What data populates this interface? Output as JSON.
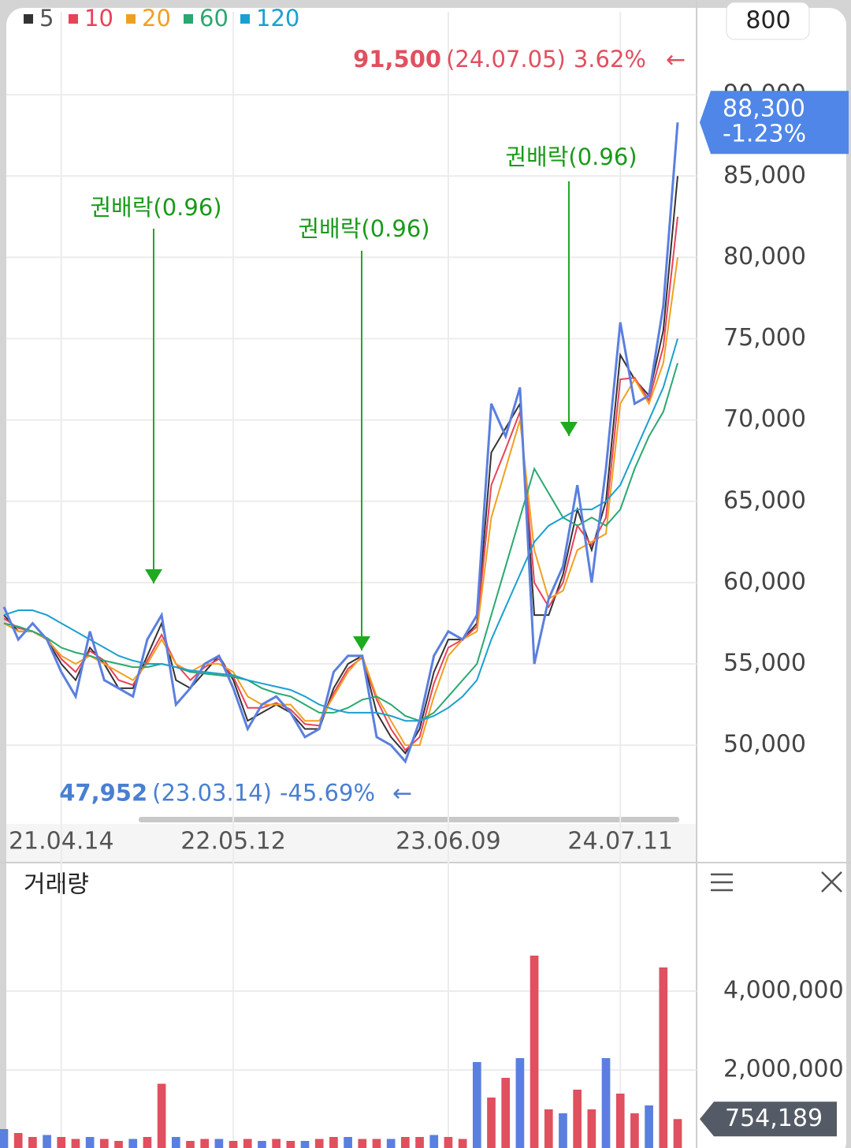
{
  "toolbar_value": "800",
  "chart_data": [
    {
      "type": "line",
      "categories": [
        null,
        null,
        null,
        null,
        "21.04.14",
        null,
        null,
        null,
        null,
        null,
        null,
        null,
        null,
        null,
        null,
        null,
        "22.05.12",
        null,
        null,
        null,
        null,
        null,
        null,
        null,
        null,
        null,
        null,
        null,
        null,
        null,
        null,
        "23.06.09",
        null,
        null,
        null,
        null,
        null,
        null,
        null,
        null,
        null,
        null,
        null,
        "24.07.11",
        null,
        null,
        null,
        null
      ],
      "values": [
        58500,
        56500,
        57500,
        56500,
        54500,
        53000,
        57000,
        54000,
        53500,
        53000,
        56500,
        58000,
        52500,
        53500,
        55000,
        55500,
        53500,
        51000,
        52500,
        53000,
        52000,
        50500,
        51000,
        54500,
        55500,
        55500,
        50500,
        50000,
        49000,
        51500,
        55500,
        57000,
        56500,
        58000,
        71000,
        69000,
        72000,
        55000,
        59000,
        61000,
        66000,
        60000,
        67000,
        76000,
        71000,
        71500,
        77000,
        88300
      ],
      "color": "#5b7fe0",
      "series": [
        {
          "name": "5",
          "color": "#333333",
          "values": [
            58000,
            57000,
            57000,
            56500,
            55000,
            54000,
            56000,
            55000,
            53500,
            53500,
            55500,
            57500,
            54000,
            53500,
            54500,
            55500,
            54000,
            51500,
            52000,
            52500,
            52000,
            51000,
            51000,
            53500,
            55000,
            55500,
            52000,
            50500,
            49500,
            51000,
            54500,
            56500,
            56500,
            57500,
            68000,
            69500,
            71000,
            58000,
            58000,
            60500,
            64500,
            62000,
            65000,
            74000,
            72500,
            71500,
            75500,
            85000
          ]
        },
        {
          "name": "10",
          "color": "#e8435a",
          "values": [
            57800,
            57200,
            57000,
            56600,
            55300,
            54500,
            55800,
            55200,
            54000,
            53700,
            55200,
            56800,
            55000,
            54000,
            54800,
            55300,
            54200,
            52300,
            52300,
            52600,
            52200,
            51300,
            51200,
            53200,
            54700,
            55400,
            52800,
            51000,
            49700,
            50500,
            53800,
            56000,
            56500,
            57300,
            66000,
            68200,
            70500,
            60000,
            58500,
            60000,
            63500,
            62300,
            64000,
            72500,
            72600,
            71200,
            74500,
            82500
          ]
        },
        {
          "name": "20",
          "color": "#f0a020",
          "values": [
            57500,
            57000,
            57000,
            56500,
            55500,
            55000,
            55500,
            55000,
            54500,
            54000,
            55000,
            56500,
            55000,
            54500,
            55000,
            55000,
            54500,
            53000,
            52500,
            52500,
            52500,
            51500,
            51500,
            53000,
            54500,
            55500,
            53000,
            51500,
            50000,
            50000,
            53000,
            55500,
            56500,
            57000,
            64000,
            67000,
            70000,
            62000,
            59000,
            59500,
            62000,
            62500,
            63000,
            71000,
            72500,
            71000,
            73500,
            80000
          ]
        },
        {
          "name": "60",
          "color": "#2aa870",
          "values": [
            57500,
            57300,
            57000,
            56600,
            56000,
            55700,
            55500,
            55200,
            55000,
            54800,
            54800,
            55000,
            54800,
            54500,
            54400,
            54300,
            54200,
            54000,
            53500,
            53200,
            53000,
            52500,
            52000,
            52000,
            52300,
            52800,
            53000,
            52500,
            51800,
            51500,
            52000,
            53000,
            54000,
            55000,
            58000,
            61000,
            64000,
            67000,
            65500,
            64000,
            63500,
            64000,
            63500,
            64500,
            67000,
            69000,
            70500,
            73500
          ]
        },
        {
          "name": "120",
          "color": "#1aa0d0",
          "values": [
            58000,
            58300,
            58300,
            58000,
            57500,
            57000,
            56500,
            56000,
            55500,
            55200,
            55000,
            55000,
            54800,
            54600,
            54500,
            54400,
            54300,
            54000,
            53800,
            53600,
            53400,
            53000,
            52500,
            52200,
            52000,
            52000,
            52000,
            51800,
            51500,
            51500,
            51800,
            52300,
            53000,
            54000,
            56500,
            58500,
            60500,
            62500,
            63500,
            64000,
            64500,
            64500,
            65000,
            66000,
            68000,
            70000,
            72000,
            75000
          ]
        }
      ],
      "ylim": [
        45400,
        95100
      ],
      "yticks": [
        {
          "value": 50000,
          "label": "50,000"
        },
        {
          "value": 55000,
          "label": "55,000"
        },
        {
          "value": 60000,
          "label": "60,000"
        },
        {
          "value": 65000,
          "label": "65,000"
        },
        {
          "value": 70000,
          "label": "70,000"
        },
        {
          "value": 75000,
          "label": "75,000"
        },
        {
          "value": 80000,
          "label": "80,000"
        },
        {
          "value": 85000,
          "label": "85,000"
        },
        {
          "value": 90000,
          "label": "90,000"
        }
      ],
      "grid": true,
      "annotations": [
        "권배락(0.96)",
        "권배락(0.96)",
        "권배락(0.96)"
      ],
      "max_marker": {
        "value": 91500,
        "label": "91,500",
        "date": "(24.07.05)",
        "change": "3.62%"
      },
      "min_marker": {
        "value": 47952,
        "label": "47,952",
        "date": "(23.03.14)",
        "change": "-45.69%"
      },
      "current": {
        "value": 88300,
        "label": "88,300",
        "change": "-1.23%"
      }
    },
    {
      "type": "bar",
      "title": "거래량",
      "color": "#e0505f",
      "values": [
        500000,
        400000,
        300000,
        350000,
        300000,
        250000,
        300000,
        250000,
        200000,
        250000,
        300000,
        1650000,
        300000,
        200000,
        250000,
        250000,
        200000,
        250000,
        200000,
        250000,
        200000,
        200000,
        250000,
        300000,
        300000,
        250000,
        250000,
        250000,
        300000,
        300000,
        350000,
        300000,
        250000,
        2200000,
        1300000,
        1800000,
        2300000,
        4900000,
        1000000,
        900000,
        1500000,
        1000000,
        2300000,
        1400000,
        900000,
        1100000,
        4600000,
        754189
      ],
      "ylim": [
        0,
        7140000
      ],
      "yticks": [
        {
          "value": 2000000,
          "label": "2,000,000"
        },
        {
          "value": 4000000,
          "label": "4,000,000"
        }
      ],
      "grid": true,
      "current": {
        "value": 754189,
        "label": "754,189"
      }
    }
  ]
}
